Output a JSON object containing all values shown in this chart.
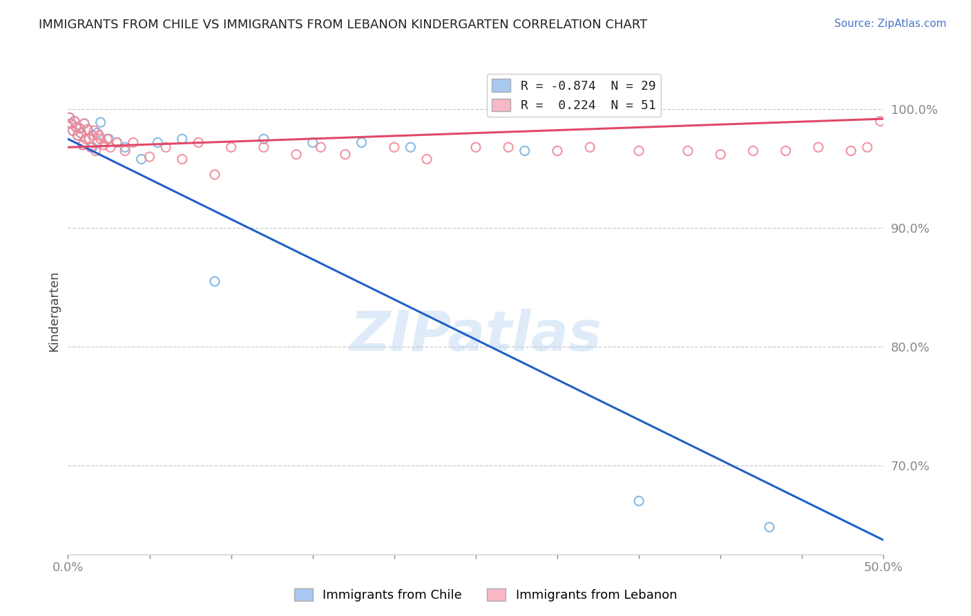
{
  "title": "IMMIGRANTS FROM CHILE VS IMMIGRANTS FROM LEBANON KINDERGARTEN CORRELATION CHART",
  "source_text": "Source: ZipAtlas.com",
  "ylabel": "Kindergarten",
  "ytick_values": [
    1.0,
    0.9,
    0.8,
    0.7
  ],
  "xlim": [
    0.0,
    0.5
  ],
  "ylim": [
    0.625,
    1.035
  ],
  "chile_color": "#7ab3e0",
  "lebanon_color": "#f08898",
  "chile_scatter_x": [
    0.001,
    0.002,
    0.003,
    0.004,
    0.005,
    0.006,
    0.007,
    0.008,
    0.009,
    0.01,
    0.012,
    0.013,
    0.015,
    0.018,
    0.02,
    0.025,
    0.03,
    0.035,
    0.045,
    0.055,
    0.07,
    0.09,
    0.12,
    0.15,
    0.18,
    0.21,
    0.28,
    0.35,
    0.43
  ],
  "chile_scatter_y": [
    0.993,
    0.988,
    0.982,
    0.99,
    0.985,
    0.978,
    0.984,
    0.98,
    0.97,
    0.988,
    0.983,
    0.975,
    0.968,
    0.98,
    0.989,
    0.975,
    0.972,
    0.968,
    0.958,
    0.972,
    0.975,
    0.855,
    0.975,
    0.972,
    0.972,
    0.968,
    0.965,
    0.67,
    0.648
  ],
  "lebanon_scatter_x": [
    0.001,
    0.002,
    0.003,
    0.004,
    0.005,
    0.006,
    0.007,
    0.008,
    0.009,
    0.01,
    0.011,
    0.012,
    0.013,
    0.014,
    0.015,
    0.016,
    0.017,
    0.018,
    0.019,
    0.02,
    0.022,
    0.024,
    0.026,
    0.03,
    0.035,
    0.04,
    0.05,
    0.06,
    0.07,
    0.08,
    0.09,
    0.1,
    0.12,
    0.14,
    0.155,
    0.17,
    0.2,
    0.22,
    0.25,
    0.27,
    0.3,
    0.32,
    0.35,
    0.38,
    0.4,
    0.42,
    0.44,
    0.46,
    0.48,
    0.49,
    0.498
  ],
  "lebanon_scatter_y": [
    0.993,
    0.988,
    0.982,
    0.99,
    0.985,
    0.978,
    0.984,
    0.98,
    0.97,
    0.988,
    0.975,
    0.983,
    0.975,
    0.968,
    0.978,
    0.982,
    0.965,
    0.972,
    0.978,
    0.975,
    0.97,
    0.975,
    0.968,
    0.972,
    0.965,
    0.972,
    0.96,
    0.968,
    0.958,
    0.972,
    0.945,
    0.968,
    0.968,
    0.962,
    0.968,
    0.962,
    0.968,
    0.958,
    0.968,
    0.968,
    0.965,
    0.968,
    0.965,
    0.965,
    0.962,
    0.965,
    0.965,
    0.968,
    0.965,
    0.968,
    0.99
  ],
  "chile_trend_x": [
    0.0,
    0.5
  ],
  "chile_trend_y": [
    0.975,
    0.637
  ],
  "lebanon_trend_x": [
    0.0,
    0.5
  ],
  "lebanon_trend_y": [
    0.968,
    0.992
  ],
  "grid_color": "#c8c8c8",
  "background_color": "#ffffff",
  "watermark_text": "ZIPatlas",
  "watermark_color": "#b8d4f0",
  "watermark_alpha": 0.45,
  "legend_chile_color": "#a8c8f0",
  "legend_lebanon_color": "#f8b8c8",
  "legend_chile_label": "R = -0.874  N = 29",
  "legend_lebanon_label": "R =  0.224  N = 51",
  "bottom_legend_chile": "Immigrants from Chile",
  "bottom_legend_lebanon": "Immigrants from Lebanon",
  "title_fontsize": 13,
  "tick_fontsize": 13,
  "source_fontsize": 11
}
